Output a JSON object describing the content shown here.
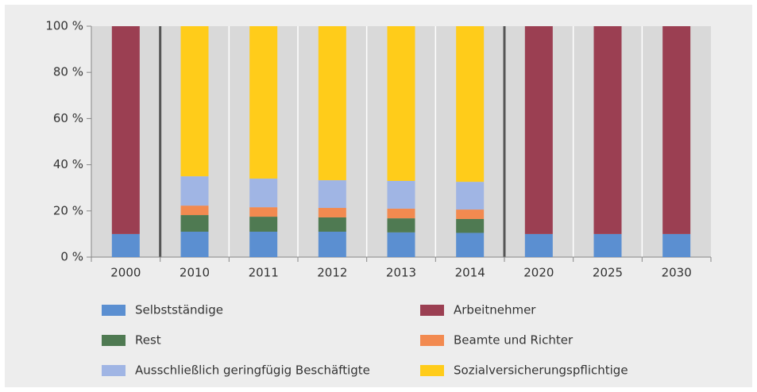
{
  "chart_data": {
    "type": "stacked-bar",
    "categories": [
      "2000",
      "2010",
      "2011",
      "2012",
      "2013",
      "2014",
      "2020",
      "2025",
      "2030"
    ],
    "series": [
      {
        "name": "Selbstständige",
        "color": "#5b8fd1",
        "values": [
          10,
          11,
          11,
          11,
          10.7,
          10.5,
          10,
          10,
          10
        ]
      },
      {
        "name": "Rest",
        "color": "#4f7a52",
        "values": [
          null,
          7.2,
          6.5,
          6.2,
          6.1,
          6,
          null,
          null,
          null
        ]
      },
      {
        "name": "Beamte und Richter",
        "color": "#f28a50",
        "values": [
          null,
          4.1,
          4.1,
          4.1,
          4.2,
          4.1,
          null,
          null,
          null
        ]
      },
      {
        "name": "Ausschließlich geringfügig Beschäftigte",
        "color": "#a0b5e4",
        "values": [
          null,
          12.7,
          12.4,
          12,
          12,
          12,
          null,
          null,
          null
        ]
      },
      {
        "name": "Sozialversicherungspflichtige",
        "color": "#ffcc1a",
        "values": [
          null,
          65,
          66,
          66.7,
          67,
          67.4,
          null,
          null,
          null
        ]
      },
      {
        "name": "Arbeitnehmer",
        "color": "#9b3f52",
        "values": [
          90,
          null,
          null,
          null,
          null,
          null,
          90,
          90,
          90
        ]
      }
    ],
    "ylim": [
      0,
      100
    ],
    "yticks": [
      {
        "value": 0,
        "label": "0 %"
      },
      {
        "value": 20,
        "label": "20 %"
      },
      {
        "value": 40,
        "label": "40 %"
      },
      {
        "value": 60,
        "label": "60 %"
      },
      {
        "value": 80,
        "label": "80 %"
      },
      {
        "value": 100,
        "label": "100 %"
      }
    ]
  }
}
